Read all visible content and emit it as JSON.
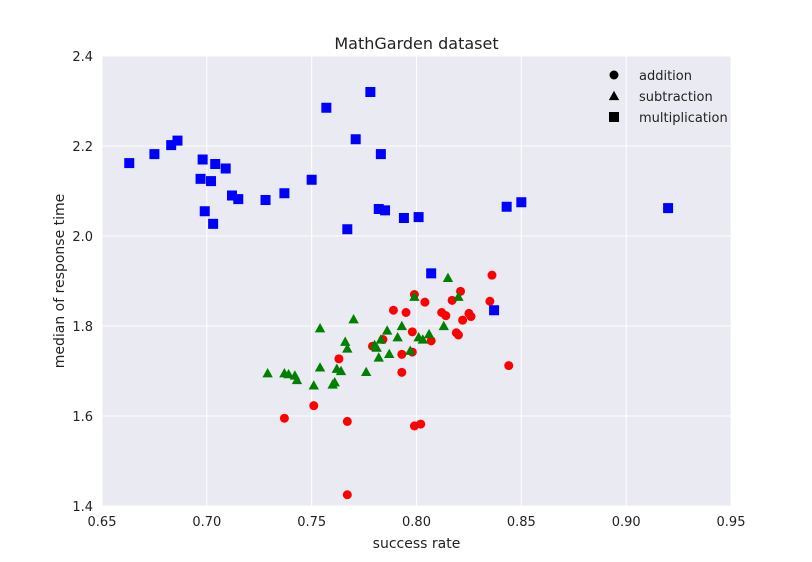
{
  "chart_data": {
    "type": "scatter",
    "title": "MathGarden dataset",
    "xlabel": "success rate",
    "ylabel": "median of response time",
    "xlim": [
      0.65,
      0.95
    ],
    "ylim": [
      1.4,
      2.4
    ],
    "xticks": [
      "0.65",
      "0.70",
      "0.75",
      "0.80",
      "0.85",
      "0.90",
      "0.95"
    ],
    "yticks": [
      "1.4",
      "1.6",
      "1.8",
      "2.0",
      "2.2",
      "2.4"
    ],
    "grid": true,
    "background": "#eaeaf2",
    "legend_position": "top-right",
    "series": [
      {
        "name": "addition",
        "marker": "circle",
        "color": "#ff0000",
        "points": [
          [
            0.737,
            1.595
          ],
          [
            0.751,
            1.623
          ],
          [
            0.767,
            1.588
          ],
          [
            0.767,
            1.425
          ],
          [
            0.763,
            1.727
          ],
          [
            0.779,
            1.755
          ],
          [
            0.784,
            1.77
          ],
          [
            0.789,
            1.835
          ],
          [
            0.793,
            1.737
          ],
          [
            0.793,
            1.697
          ],
          [
            0.795,
            1.83
          ],
          [
            0.798,
            1.787
          ],
          [
            0.798,
            1.742
          ],
          [
            0.799,
            1.87
          ],
          [
            0.799,
            1.578
          ],
          [
            0.802,
            1.582
          ],
          [
            0.804,
            1.853
          ],
          [
            0.807,
            1.767
          ],
          [
            0.812,
            1.83
          ],
          [
            0.814,
            1.823
          ],
          [
            0.817,
            1.857
          ],
          [
            0.819,
            1.785
          ],
          [
            0.82,
            1.78
          ],
          [
            0.821,
            1.877
          ],
          [
            0.822,
            1.813
          ],
          [
            0.825,
            1.828
          ],
          [
            0.826,
            1.821
          ],
          [
            0.835,
            1.855
          ],
          [
            0.836,
            1.913
          ],
          [
            0.844,
            1.712
          ]
        ]
      },
      {
        "name": "subtraction",
        "marker": "triangle",
        "color": "#008000",
        "points": [
          [
            0.729,
            1.695
          ],
          [
            0.737,
            1.695
          ],
          [
            0.739,
            1.693
          ],
          [
            0.742,
            1.69
          ],
          [
            0.743,
            1.68
          ],
          [
            0.751,
            1.668
          ],
          [
            0.754,
            1.795
          ],
          [
            0.754,
            1.708
          ],
          [
            0.76,
            1.67
          ],
          [
            0.761,
            1.675
          ],
          [
            0.762,
            1.705
          ],
          [
            0.764,
            1.7
          ],
          [
            0.766,
            1.765
          ],
          [
            0.767,
            1.75
          ],
          [
            0.77,
            1.815
          ],
          [
            0.776,
            1.698
          ],
          [
            0.78,
            1.758
          ],
          [
            0.781,
            1.752
          ],
          [
            0.782,
            1.73
          ],
          [
            0.783,
            1.77
          ],
          [
            0.786,
            1.79
          ],
          [
            0.787,
            1.738
          ],
          [
            0.791,
            1.775
          ],
          [
            0.793,
            1.8
          ],
          [
            0.797,
            1.745
          ],
          [
            0.799,
            1.865
          ],
          [
            0.801,
            1.775
          ],
          [
            0.803,
            1.77
          ],
          [
            0.806,
            1.782
          ],
          [
            0.813,
            1.8
          ],
          [
            0.815,
            1.907
          ],
          [
            0.82,
            1.865
          ]
        ]
      },
      {
        "name": "multiplication",
        "marker": "square",
        "color": "#0000ff",
        "points": [
          [
            0.663,
            2.162
          ],
          [
            0.675,
            2.182
          ],
          [
            0.683,
            2.202
          ],
          [
            0.686,
            2.212
          ],
          [
            0.697,
            2.127
          ],
          [
            0.698,
            2.17
          ],
          [
            0.699,
            2.055
          ],
          [
            0.702,
            2.122
          ],
          [
            0.703,
            2.027
          ],
          [
            0.704,
            2.16
          ],
          [
            0.709,
            2.15
          ],
          [
            0.712,
            2.09
          ],
          [
            0.715,
            2.082
          ],
          [
            0.728,
            2.08
          ],
          [
            0.737,
            2.095
          ],
          [
            0.75,
            2.125
          ],
          [
            0.757,
            2.285
          ],
          [
            0.767,
            2.015
          ],
          [
            0.771,
            2.215
          ],
          [
            0.778,
            2.32
          ],
          [
            0.782,
            2.06
          ],
          [
            0.783,
            2.182
          ],
          [
            0.785,
            2.057
          ],
          [
            0.794,
            2.04
          ],
          [
            0.801,
            2.042
          ],
          [
            0.807,
            1.917
          ],
          [
            0.837,
            1.835
          ],
          [
            0.843,
            2.065
          ],
          [
            0.85,
            2.075
          ],
          [
            0.92,
            2.062
          ]
        ]
      }
    ]
  }
}
